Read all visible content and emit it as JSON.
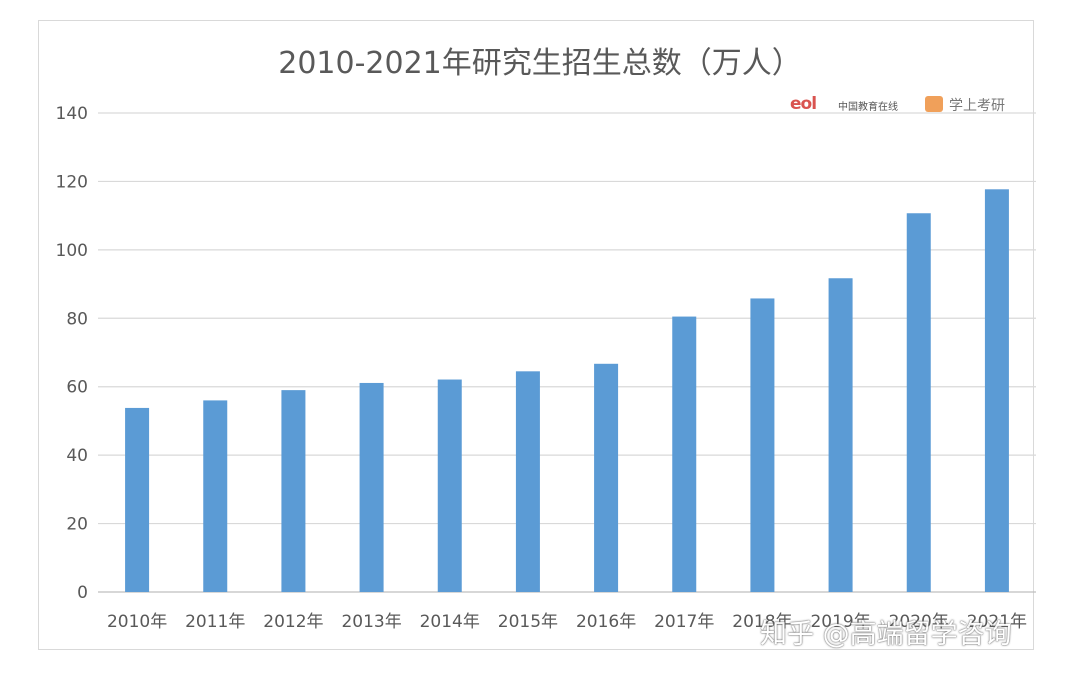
{
  "chart_data": {
    "type": "bar",
    "title": "2010-2021年研究生招生总数（万人）",
    "categories": [
      "2010年",
      "2011年",
      "2012年",
      "2013年",
      "2014年",
      "2015年",
      "2016年",
      "2017年",
      "2018年",
      "2019年",
      "2020年",
      "2021年"
    ],
    "values": [
      53.8,
      56.0,
      59.0,
      61.1,
      62.1,
      64.5,
      66.7,
      80.5,
      85.8,
      91.7,
      110.7,
      117.7
    ],
    "ylim": [
      0,
      140
    ],
    "yticks": [
      "0",
      "20",
      "40",
      "60",
      "80",
      "100",
      "120",
      "140"
    ],
    "xlabel": "",
    "ylabel": "",
    "grid": true,
    "legend": "none",
    "bar_color": "#5b9bd5"
  },
  "logos": {
    "eol_mark": "eol",
    "eol_text": "中国教育在线",
    "xz_text": "学上考研"
  },
  "watermark": "知乎 @高端留学咨询"
}
